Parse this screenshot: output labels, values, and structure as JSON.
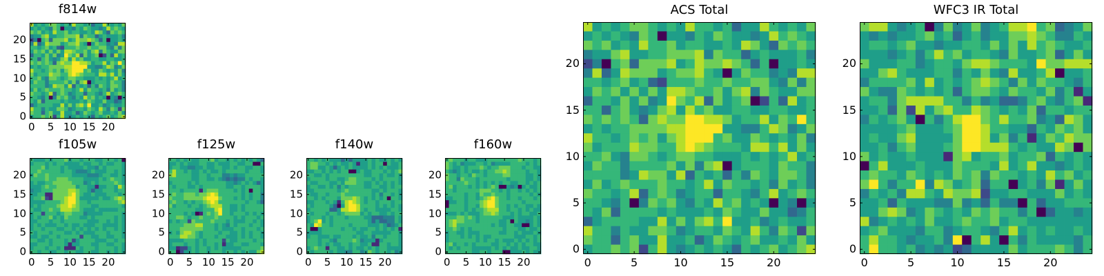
{
  "chart_data": {
    "type": "heatmap",
    "colormap": "viridis",
    "palette": [
      "#440154",
      "#482878",
      "#3e4989",
      "#31688e",
      "#26828e",
      "#1f9e89",
      "#35b779",
      "#6ece58",
      "#b5de2b",
      "#fde725"
    ],
    "note_levels": "values are relative intensity levels 0-9 (dark purple to yellow); rows listed from y=24 (top) to y=0 (bottom)",
    "xlim": [
      -0.5,
      24.5
    ],
    "ylim": [
      -0.5,
      24.5
    ],
    "xticks": [
      "0",
      "5",
      "10",
      "15",
      "20"
    ],
    "yticks": [
      "0",
      "5",
      "10",
      "15",
      "20"
    ],
    "panels": [
      {
        "id": "f814w",
        "title": "f814w",
        "rows": [
          "8565677656586656355865657",
          "5656547605546576554586765",
          "7675658667566556587537676",
          "4557855667778476635655564",
          "2406737778568778763605565",
          "4835877756778650576645488",
          "6656756326667667667754747",
          "5767575758876675784765577",
          "3665757459768375670263856",
          "6636754578586755665566556",
          "7676763787799887566857696",
          "5656677778899995544687457",
          "8665676757899967557656574",
          "7566687766898766658868575",
          "6675477656776655565656856",
          "5766466667574780566657664",
          "6666458775836563647657764",
          "5756766676656857665647564",
          "7665683676456636654685676",
          "6654604767546586756505405",
          "6573666656555657655755346",
          "3566665585757869556456556",
          "8664655776456657658647627",
          "7663675585563576567556575",
          "5667672685456565365675678"
        ]
      },
      {
        "id": "f105w",
        "title": "f105w",
        "rows": [
          "6555656667566566655666560",
          "5666565665555655665655665",
          "6667566656555565546566665",
          "6676666656654445655566565",
          "5766766666655554445665565",
          "6666766777666655556567665",
          "5655667777766645656666765",
          "5556766777775665515566586",
          "4556667777887665355666566",
          "5566117777897655655566656",
          "5667217778997555556556787",
          "5555666678997665666666678",
          "5656666788987666556666665",
          "6556676688877655565555566",
          "5662666567766645555666665",
          "5656675657666556566666565",
          "5566656656666665556656565",
          "5656555665655655566555565",
          "5665666556656565656566565",
          "6566656665565655566656665",
          "5565566566666266556655665",
          "6655656665625666655566566",
          "5566656665155666556655665",
          "5666566561116566656666565",
          "6656655665665566556656565"
        ]
      },
      {
        "id": "f125w",
        "title": "f125w",
        "rows": [
          "6656565566675665656565653",
          "5565655566556555665566006",
          "5665544556556655656655665",
          "6866565565655656666656665",
          "7866665566566644545566666",
          "6666665566556543434465665",
          "5666656566666665545656535",
          "6566655656666665566566665",
          "6665666616777666656560665",
          "6766777677898666666565664",
          "7666777778999766656565664",
          "6766565667898666666656653",
          "7566656656788866556566666",
          "6666666556668966556566666",
          "6666565016767966566656565",
          "6677656676667666656566656",
          "5656627666676665655566565",
          "6666777886665654656665665",
          "6667777776665655566566656",
          "5657887656666566556565665",
          "6668877656665665556565665",
          "5555666565666626556666566",
          "5666566565665615566556665",
          "5512256566565655555666667",
          "6602556566566656656565578"
        ]
      },
      {
        "id": "f140w",
        "title": "f140w",
        "rows": [
          "6656565553535555656556565",
          "6776656565565155656606556",
          "6775565356565555656565556",
          "5566565656600565566656567",
          "6655656666666665566565565",
          "5666656655677666656566665",
          "6556665565777665565656565",
          "5665565646566665566556566",
          "5566666656766666655656665",
          "6556656667666666656466565",
          "6656566657778765656560665",
          "5566656516898765665666566",
          "6566665305899866665656565",
          "5666663358899865665555665",
          "6566656656777756566556566",
          "5666565666566665533344465",
          "5679565666666666535334465",
          "6598665666656666555653456",
          "6005666665665655665656561",
          "5555666666666556655555665",
          "5665556556665655646656665",
          "6665665466667645551566665",
          "6665656556656655611665665",
          "5676616655656556565665555",
          "6566665655446645765665645"
        ]
      },
      {
        "id": "f160w",
        "title": "f160w",
        "rows": [
          "6766656655566666666766656",
          "7656455566564555566665656",
          "7655656667656677766656655",
          "6545656556566778766665665",
          "7665665766566667766665565",
          "7664766656666666566665565",
          "6666676656565656655665656",
          "6756665656567600545056556",
          "6656666667776656566565656",
          "6666656657667666566666565",
          "5566656656789766566566656",
          "0556656667899766666656666",
          "0666656657899766565665565",
          "6666656566788866566565655",
          "5556565556778766656566556",
          "6667767656666665556555565",
          "6787766656666655606554565",
          "6786666666665655665500565",
          "6676565666666665666556556",
          "5665565556666655665655565",
          "5666565656556666665556656",
          "5666666656566565556565656",
          "6756656566665566565656655",
          "6565666555556565655655665",
          "6666666556656660055565655"
        ]
      },
      {
        "id": "acs",
        "title": "ACS Total",
        "rows": [
          "8565677656586656355865657",
          "5656547605546576554586765",
          "7675658667566556587537676",
          "4557855667778476635655564",
          "2406737778568778763605565",
          "4835877756778650576645488",
          "6656756326667667667754747",
          "5767575758876675784765577",
          "3665757459768375670263856",
          "6636754578586755665566556",
          "7676763787799887566857696",
          "5656677778899995544687457",
          "8665676757899967557656574",
          "7566687766898766658868575",
          "6675477656776655565656856",
          "5766466667574780566657664",
          "6666458775836563647657764",
          "5756766676656857665647564",
          "7665683676456636654685676",
          "6654604767546586756505405",
          "6573666656555657655755346",
          "3566665585757869556456556",
          "8664655776456657658647627",
          "7663675585563576567556575",
          "5667672685456565365675678"
        ]
      },
      {
        "id": "wfc3",
        "title": "WFC3 IR Total",
        "rows": [
          "7885456047457456889673457",
          "5454556756356455778764465",
          "5665675545566575758676556",
          "5554564686756654755673575",
          "7555664566578876665977888",
          "5578655566465754855680556",
          "4666675856567876475766546",
          "7544765656367765766574615",
          "5664788886646453346754671",
          "5563728578668765657366566",
          "4656750646899768667453875",
          "5555675556799866553657675",
          "5655785555799857461576877",
          "5564675556799888656558707",
          "7565565551785667566736565",
          "0685556555766658568554565",
          "6766576565767476656586756",
          "7964669487567366056471575",
          "4656488658778255665557565",
          "5563655544745364406355666",
          "5578745765657676646035545",
          "8456565755676675665555555",
          "5675554664566546856565565",
          "6866545564906850646555546",
          "6966564545235555756667646"
        ]
      }
    ]
  }
}
